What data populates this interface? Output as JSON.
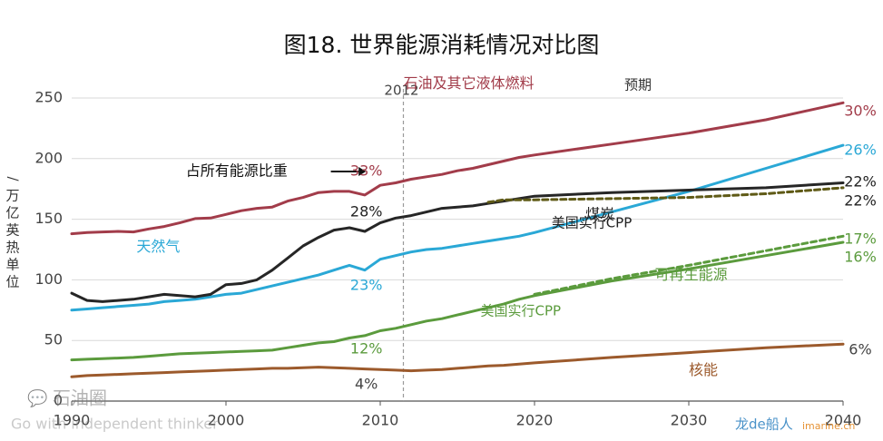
{
  "chart_data": {
    "type": "line",
    "title": "图18. 世界能源消耗情况对比图",
    "ylabel": "/万亿英热单位",
    "xlim": [
      1990,
      2040
    ],
    "ylim": [
      0,
      250
    ],
    "x_ticks": [
      1990,
      2000,
      2010,
      2020,
      2030,
      2040
    ],
    "y_ticks": [
      0,
      50,
      100,
      150,
      200,
      250
    ],
    "grid": "horizontal",
    "divider": {
      "x": 2011.5,
      "label": "2012"
    },
    "projection_label": "预期",
    "share_label": "占所有能源比重",
    "watermark": {
      "logo": "石油圈",
      "tagline": "Go with independent thinker",
      "corner_logo": "龙de船人",
      "corner_url": "imarine.cn"
    },
    "series": [
      {
        "name": "石油及其它液体燃料",
        "color": "#a23c4a",
        "points": [
          [
            1990,
            138
          ],
          [
            1991,
            139
          ],
          [
            1992,
            139.5
          ],
          [
            1993,
            140
          ],
          [
            1994,
            139.5
          ],
          [
            1995,
            142
          ],
          [
            1996,
            144
          ],
          [
            1997,
            147
          ],
          [
            1998,
            150.5
          ],
          [
            1999,
            151
          ],
          [
            2000,
            154
          ],
          [
            2001,
            157
          ],
          [
            2002,
            159
          ],
          [
            2003,
            160
          ],
          [
            2004,
            165
          ],
          [
            2005,
            168
          ],
          [
            2006,
            172
          ],
          [
            2007,
            173
          ],
          [
            2008,
            173
          ],
          [
            2009,
            170
          ],
          [
            2010,
            178
          ],
          [
            2011,
            180
          ],
          [
            2012,
            183
          ],
          [
            2013,
            185
          ],
          [
            2014,
            187
          ],
          [
            2015,
            190
          ],
          [
            2016,
            192
          ],
          [
            2017,
            195
          ],
          [
            2018,
            198
          ],
          [
            2019,
            201
          ],
          [
            2020,
            203
          ],
          [
            2025,
            212
          ],
          [
            2030,
            221
          ],
          [
            2035,
            232
          ],
          [
            2040,
            246
          ]
        ],
        "share_start": "33%",
        "share_end": "30%"
      },
      {
        "name": "天然气",
        "color": "#2aa8d6",
        "points": [
          [
            1990,
            75
          ],
          [
            1991,
            76
          ],
          [
            1992,
            77
          ],
          [
            1993,
            78
          ],
          [
            1994,
            79
          ],
          [
            1995,
            80
          ],
          [
            1996,
            82
          ],
          [
            1997,
            83
          ],
          [
            1998,
            84
          ],
          [
            1999,
            86
          ],
          [
            2000,
            88
          ],
          [
            2001,
            89
          ],
          [
            2002,
            92
          ],
          [
            2003,
            95
          ],
          [
            2004,
            98
          ],
          [
            2005,
            101
          ],
          [
            2006,
            104
          ],
          [
            2007,
            108
          ],
          [
            2008,
            112
          ],
          [
            2009,
            108
          ],
          [
            2010,
            117
          ],
          [
            2011,
            120
          ],
          [
            2012,
            123
          ],
          [
            2013,
            125
          ],
          [
            2014,
            126
          ],
          [
            2015,
            128
          ],
          [
            2016,
            130
          ],
          [
            2017,
            132
          ],
          [
            2018,
            134
          ],
          [
            2019,
            136
          ],
          [
            2020,
            139
          ],
          [
            2025,
            156
          ],
          [
            2030,
            173
          ],
          [
            2035,
            192
          ],
          [
            2040,
            211
          ]
        ],
        "share_start": "23%",
        "share_end": "26%"
      },
      {
        "name": "煤炭",
        "color": "#262626",
        "points": [
          [
            1990,
            89
          ],
          [
            1991,
            83
          ],
          [
            1992,
            82
          ],
          [
            1993,
            83
          ],
          [
            1994,
            84
          ],
          [
            1995,
            86
          ],
          [
            1996,
            88
          ],
          [
            1997,
            87
          ],
          [
            1998,
            86
          ],
          [
            1999,
            88
          ],
          [
            2000,
            96
          ],
          [
            2001,
            97
          ],
          [
            2002,
            100
          ],
          [
            2003,
            108
          ],
          [
            2004,
            118
          ],
          [
            2005,
            128
          ],
          [
            2006,
            135
          ],
          [
            2007,
            141
          ],
          [
            2008,
            143
          ],
          [
            2009,
            140
          ],
          [
            2010,
            147
          ],
          [
            2011,
            151
          ],
          [
            2012,
            153
          ],
          [
            2013,
            156
          ],
          [
            2014,
            159
          ],
          [
            2015,
            160
          ],
          [
            2016,
            161
          ],
          [
            2017,
            163
          ],
          [
            2018,
            165
          ],
          [
            2019,
            167
          ],
          [
            2020,
            169
          ],
          [
            2025,
            172
          ],
          [
            2030,
            174
          ],
          [
            2035,
            176
          ],
          [
            2040,
            180
          ]
        ],
        "share_start": "28%",
        "share_end": "22%"
      },
      {
        "name": "可再生能源",
        "color": "#5b9b3d",
        "points": [
          [
            1990,
            34
          ],
          [
            1991,
            34.5
          ],
          [
            1992,
            35
          ],
          [
            1993,
            35.5
          ],
          [
            1994,
            36
          ],
          [
            1995,
            37
          ],
          [
            1996,
            38
          ],
          [
            1997,
            39
          ],
          [
            1998,
            39.5
          ],
          [
            1999,
            40
          ],
          [
            2000,
            40.5
          ],
          [
            2001,
            41
          ],
          [
            2002,
            41.5
          ],
          [
            2003,
            42
          ],
          [
            2004,
            44
          ],
          [
            2005,
            46
          ],
          [
            2006,
            48
          ],
          [
            2007,
            49
          ],
          [
            2008,
            52
          ],
          [
            2009,
            54
          ],
          [
            2010,
            58
          ],
          [
            2011,
            60
          ],
          [
            2012,
            63
          ],
          [
            2013,
            66
          ],
          [
            2014,
            68
          ],
          [
            2015,
            71
          ],
          [
            2016,
            74
          ],
          [
            2017,
            77
          ],
          [
            2018,
            80
          ],
          [
            2019,
            84
          ],
          [
            2020,
            87
          ],
          [
            2025,
            99
          ],
          [
            2030,
            109
          ],
          [
            2035,
            120
          ],
          [
            2040,
            131
          ]
        ],
        "share_start": "12%",
        "share_end": "16%"
      },
      {
        "name": "核能",
        "color": "#9c5a2c",
        "points": [
          [
            1990,
            20
          ],
          [
            1991,
            21
          ],
          [
            1992,
            21.5
          ],
          [
            1993,
            22
          ],
          [
            1994,
            22.5
          ],
          [
            1995,
            23
          ],
          [
            1996,
            23.5
          ],
          [
            1997,
            24
          ],
          [
            1998,
            24.5
          ],
          [
            1999,
            25
          ],
          [
            2000,
            25.5
          ],
          [
            2001,
            26
          ],
          [
            2002,
            26.5
          ],
          [
            2003,
            27
          ],
          [
            2004,
            27
          ],
          [
            2005,
            27.5
          ],
          [
            2006,
            28
          ],
          [
            2007,
            27.5
          ],
          [
            2008,
            27
          ],
          [
            2009,
            26.5
          ],
          [
            2010,
            26
          ],
          [
            2011,
            25.5
          ],
          [
            2012,
            25
          ],
          [
            2013,
            25.5
          ],
          [
            2014,
            26
          ],
          [
            2015,
            27
          ],
          [
            2016,
            28
          ],
          [
            2017,
            29
          ],
          [
            2018,
            29.5
          ],
          [
            2019,
            30.5
          ],
          [
            2020,
            31.5
          ],
          [
            2025,
            36
          ],
          [
            2030,
            40
          ],
          [
            2035,
            44
          ],
          [
            2040,
            47
          ]
        ],
        "share_start": "4%",
        "share_end": "6%"
      }
    ],
    "cpp_series": [
      {
        "name": "美国实行CPP",
        "base": "煤炭",
        "color": "#5f5a16",
        "dashed": true,
        "points": [
          [
            2017,
            164
          ],
          [
            2018,
            166
          ],
          [
            2019,
            166
          ],
          [
            2020,
            166
          ],
          [
            2025,
            167
          ],
          [
            2030,
            168
          ],
          [
            2035,
            171
          ],
          [
            2040,
            176
          ]
        ],
        "share_end": "22%"
      },
      {
        "name": "美国实行CPP",
        "base": "可再生能源",
        "color": "#5b9b3d",
        "dashed": true,
        "points": [
          [
            2020,
            88
          ],
          [
            2025,
            101
          ],
          [
            2030,
            112
          ],
          [
            2035,
            124
          ],
          [
            2040,
            136
          ]
        ],
        "share_end": "17%"
      }
    ]
  }
}
